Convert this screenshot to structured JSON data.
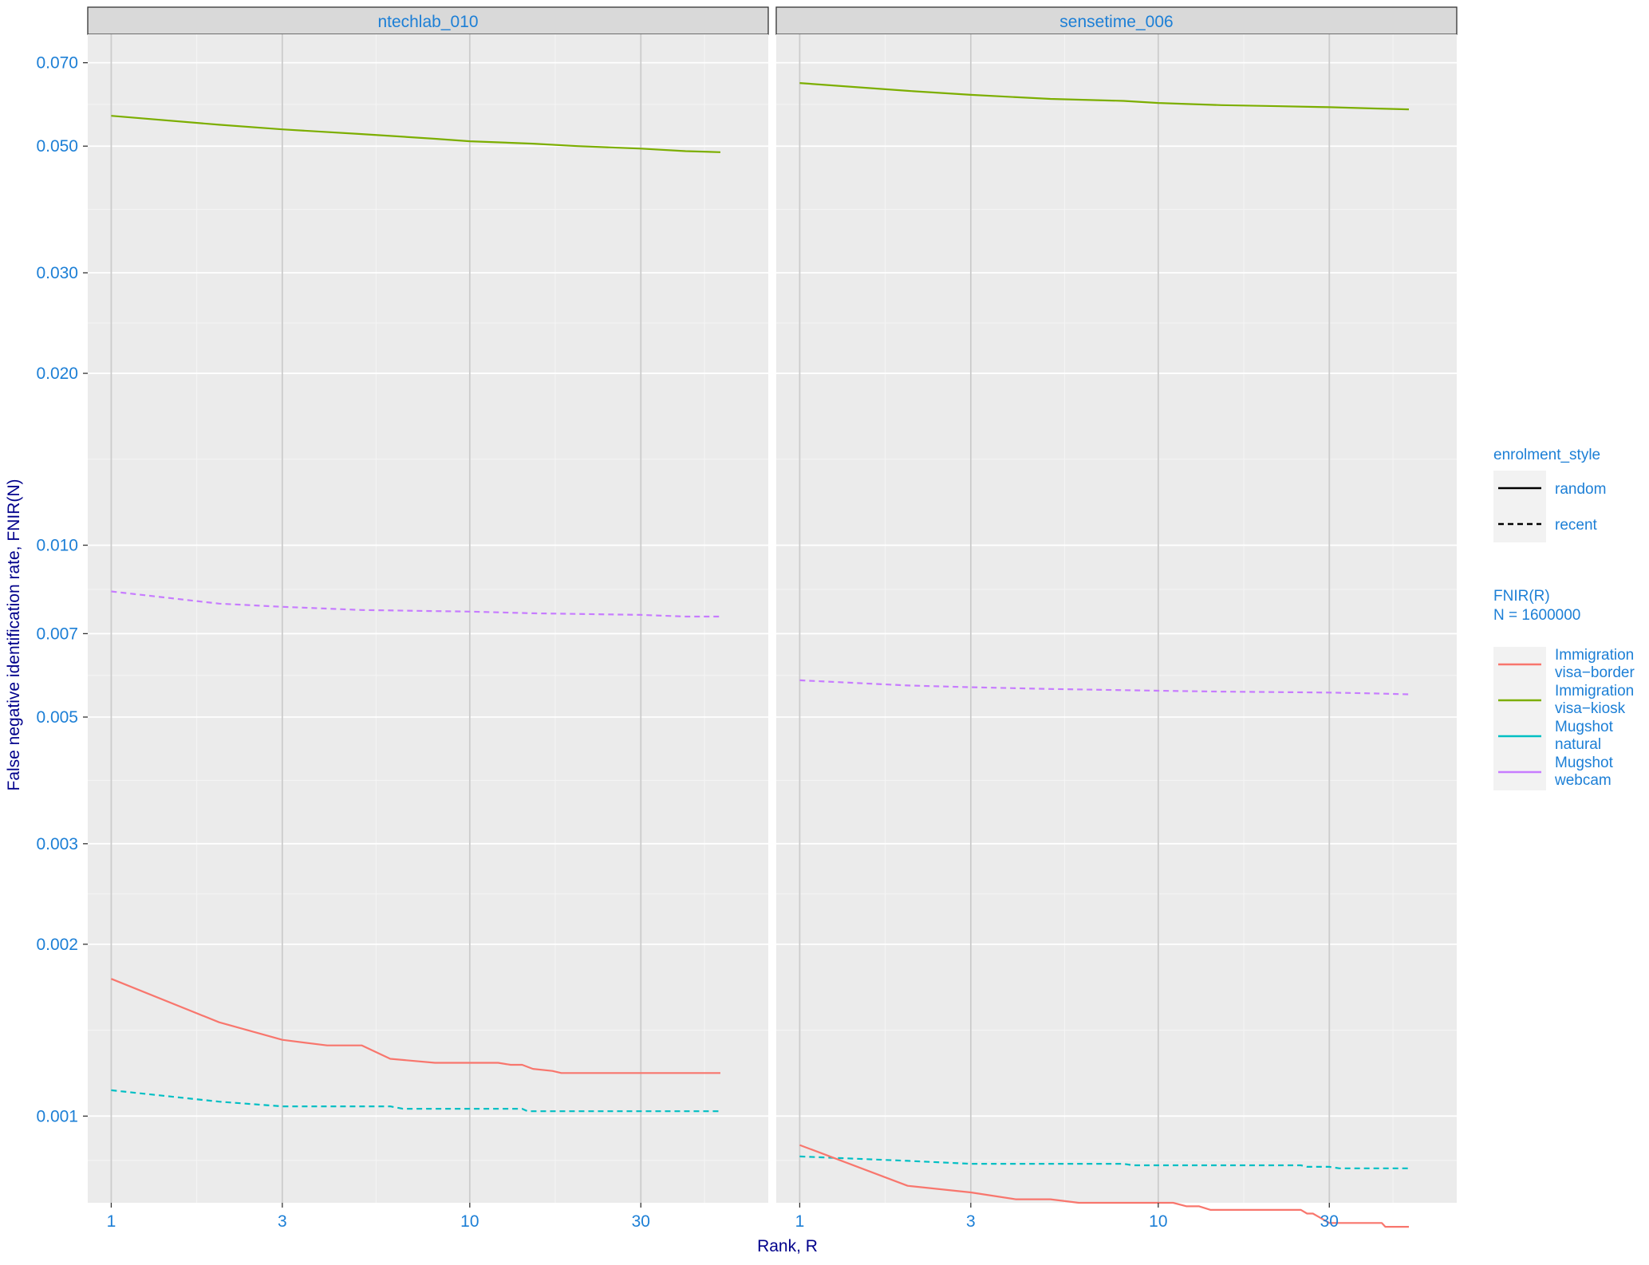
{
  "chart_data": {
    "type": "line",
    "xlabel": "Rank, R",
    "ylabel": "False negative identification rate, FNIR(N)",
    "x_scale": "log",
    "y_scale": "log",
    "xlim": [
      0.86,
      68
    ],
    "ylim": [
      0.000705,
      0.0785
    ],
    "x_ticks": [
      1,
      3,
      10,
      30
    ],
    "x_tick_labels": [
      "1",
      "3",
      "10",
      "30"
    ],
    "y_ticks": [
      0.001,
      0.002,
      0.003,
      0.005,
      0.007,
      0.01,
      0.02,
      0.03,
      0.05,
      0.07
    ],
    "y_tick_labels": [
      "0.001",
      "0.002",
      "0.003",
      "0.005",
      "0.007",
      "0.010",
      "0.020",
      "0.030",
      "0.050",
      "0.070"
    ],
    "grid": true,
    "legends": {
      "linetype": {
        "title": "enrolment_style",
        "entries": [
          {
            "label": "random",
            "dash": "solid"
          },
          {
            "label": "recent",
            "dash": "dashed"
          }
        ]
      },
      "colour": {
        "title_lines": [
          "FNIR(R)",
          "N = 1600000"
        ],
        "entries": [
          {
            "lines": [
              "Immigration",
              "visa−border"
            ],
            "color": "#f8766d"
          },
          {
            "lines": [
              "Immigration",
              "visa−kiosk"
            ],
            "color": "#7cae00"
          },
          {
            "lines": [
              "Mugshot",
              "natural"
            ],
            "color": "#00bfc4"
          },
          {
            "lines": [
              "Mugshot",
              "webcam"
            ],
            "color": "#c77cff"
          }
        ]
      },
      "placement": "right"
    },
    "panels": [
      {
        "title": "ntechlab_010",
        "series": [
          {
            "name": "Immigration visa-kiosk",
            "color": "#7cae00",
            "dash": "solid",
            "points": [
              [
                1,
                0.0565
              ],
              [
                2,
                0.0545
              ],
              [
                3,
                0.0535
              ],
              [
                5,
                0.0525
              ],
              [
                8,
                0.0515
              ],
              [
                10,
                0.051
              ],
              [
                15,
                0.0505
              ],
              [
                20,
                0.05
              ],
              [
                30,
                0.0495
              ],
              [
                40,
                0.049
              ],
              [
                50,
                0.0488
              ]
            ]
          },
          {
            "name": "Mugshot webcam",
            "color": "#c77cff",
            "dash": "dashed",
            "points": [
              [
                1,
                0.0083
              ],
              [
                2,
                0.0079
              ],
              [
                3,
                0.0078
              ],
              [
                5,
                0.0077
              ],
              [
                10,
                0.00765
              ],
              [
                15,
                0.0076
              ],
              [
                30,
                0.00755
              ],
              [
                40,
                0.0075
              ],
              [
                50,
                0.0075
              ]
            ]
          },
          {
            "name": "Immigration visa-border",
            "color": "#f8766d",
            "dash": "solid",
            "points": [
              [
                1,
                0.00174
              ],
              [
                2,
                0.00146
              ],
              [
                3,
                0.00136
              ],
              [
                4,
                0.00133
              ],
              [
                5,
                0.00133
              ],
              [
                6,
                0.00126
              ],
              [
                8,
                0.00124
              ],
              [
                12,
                0.00124
              ],
              [
                13,
                0.00123
              ],
              [
                14,
                0.00123
              ],
              [
                15,
                0.00121
              ],
              [
                17,
                0.0012
              ],
              [
                18,
                0.00119
              ],
              [
                30,
                0.00119
              ],
              [
                50,
                0.00119
              ]
            ]
          },
          {
            "name": "Mugshot natural",
            "color": "#00bfc4",
            "dash": "dashed",
            "points": [
              [
                1,
                0.00111
              ],
              [
                2,
                0.00106
              ],
              [
                3,
                0.00104
              ],
              [
                6,
                0.00104
              ],
              [
                6.5,
                0.00103
              ],
              [
                14,
                0.00103
              ],
              [
                14.5,
                0.00102
              ],
              [
                50,
                0.00102
              ]
            ]
          }
        ]
      },
      {
        "title": "sensetime_006",
        "series": [
          {
            "name": "Immigration visa-kiosk",
            "color": "#7cae00",
            "dash": "solid",
            "points": [
              [
                1,
                0.0645
              ],
              [
                2,
                0.0625
              ],
              [
                3,
                0.0615
              ],
              [
                5,
                0.0605
              ],
              [
                8,
                0.06
              ],
              [
                10,
                0.0595
              ],
              [
                15,
                0.059
              ],
              [
                20,
                0.0588
              ],
              [
                30,
                0.0585
              ],
              [
                40,
                0.0582
              ],
              [
                50,
                0.058
              ]
            ]
          },
          {
            "name": "Mugshot webcam",
            "color": "#c77cff",
            "dash": "dashed",
            "points": [
              [
                1,
                0.0058
              ],
              [
                2,
                0.00568
              ],
              [
                3,
                0.00564
              ],
              [
                5,
                0.0056
              ],
              [
                10,
                0.00556
              ],
              [
                15,
                0.00554
              ],
              [
                30,
                0.00552
              ],
              [
                40,
                0.0055
              ],
              [
                50,
                0.00548
              ]
            ]
          },
          {
            "name": "Mugshot natural",
            "color": "#00bfc4",
            "dash": "dashed",
            "points": [
              [
                1,
                0.00085
              ],
              [
                2,
                0.000835
              ],
              [
                3,
                0.000825
              ],
              [
                8,
                0.000825
              ],
              [
                8.5,
                0.00082
              ],
              [
                25,
                0.00082
              ],
              [
                26,
                0.000815
              ],
              [
                30,
                0.000815
              ],
              [
                32,
                0.00081
              ],
              [
                50,
                0.00081
              ]
            ]
          },
          {
            "name": "Immigration visa-border",
            "color": "#f8766d",
            "dash": "solid",
            "points": [
              [
                1,
                0.00089
              ],
              [
                2,
                0.000755
              ],
              [
                3,
                0.000735
              ],
              [
                4,
                0.000715
              ],
              [
                5,
                0.000715
              ],
              [
                6,
                0.000705
              ],
              [
                11,
                0.000705
              ],
              [
                12,
                0.000695
              ],
              [
                13,
                0.000695
              ],
              [
                14,
                0.000685
              ],
              [
                25,
                0.000685
              ],
              [
                26,
                0.000675
              ],
              [
                27,
                0.000675
              ],
              [
                30,
                0.00065
              ],
              [
                42,
                0.00065
              ],
              [
                43,
                0.00064
              ],
              [
                50,
                0.00064
              ]
            ]
          }
        ]
      }
    ]
  }
}
